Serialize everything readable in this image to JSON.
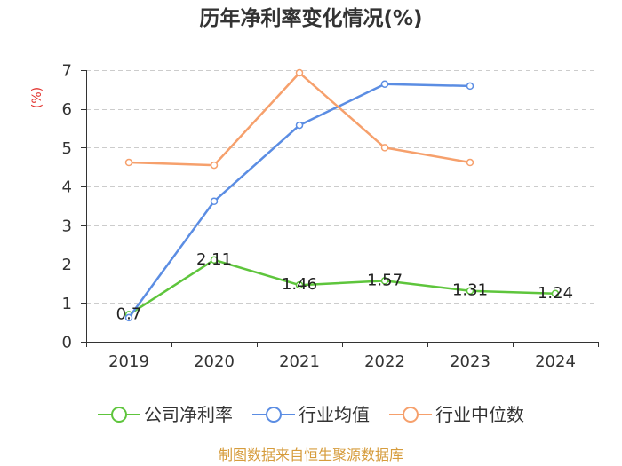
{
  "chart_data": {
    "type": "line",
    "title": "历年净利率变化情况(%)",
    "ylabel": "(%)",
    "categories": [
      "2019",
      "2020",
      "2021",
      "2022",
      "2023",
      "2024"
    ],
    "ylim": [
      0,
      7
    ],
    "yticks": [
      0,
      1,
      2,
      3,
      4,
      5,
      6,
      7
    ],
    "grid": true,
    "legend_position": "bottom",
    "series": [
      {
        "name": "公司净利率",
        "color": "#5ec53c",
        "values": [
          0.7,
          2.11,
          1.46,
          1.57,
          1.31,
          1.24
        ],
        "data_labels": [
          "0.7",
          "2.11",
          "1.46",
          "1.57",
          "1.31",
          "1.24"
        ]
      },
      {
        "name": "行业均值",
        "color": "#5b8de3",
        "values": [
          0.62,
          3.62,
          5.58,
          6.64,
          6.59,
          null
        ]
      },
      {
        "name": "行业中位数",
        "color": "#f6a06c",
        "values": [
          4.62,
          4.55,
          6.93,
          5.0,
          4.62,
          null
        ]
      }
    ]
  },
  "footer": {
    "source_text": "制图数据来自恒生聚源数据库"
  },
  "colors": {
    "title": "#333333",
    "text": "#333333",
    "label": "#222222",
    "ylabel": "#e2322d",
    "footer": "#d69c3c",
    "axis": "#333333",
    "grid": "#cccccc",
    "marker_fill": "#ffffff"
  }
}
